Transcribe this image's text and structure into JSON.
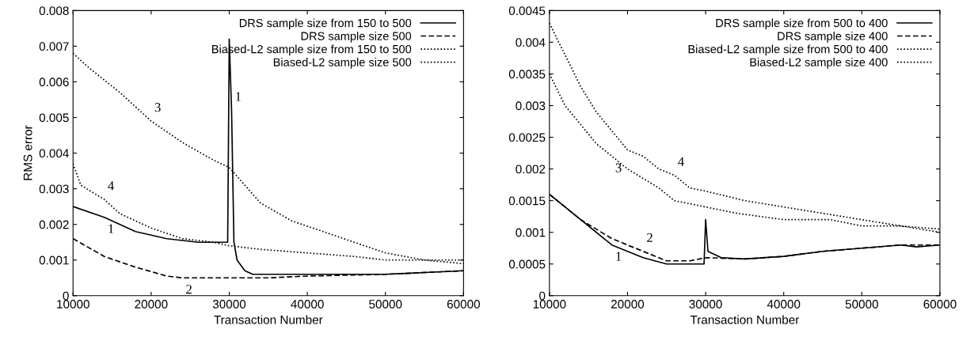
{
  "chart_data": [
    {
      "type": "line",
      "xlabel": "Transaction Number",
      "ylabel": "RMS error",
      "xlim": [
        10000,
        60000
      ],
      "xticks": [
        10000,
        20000,
        30000,
        40000,
        50000,
        60000
      ],
      "ylim": [
        0,
        0.008
      ],
      "yticks": [
        0,
        0.001,
        0.002,
        0.003,
        0.004,
        0.005,
        0.006,
        0.007,
        0.008
      ],
      "legend": "top right",
      "grid": false,
      "series": [
        {
          "name": "DRS sample size from 150 to 500",
          "color": "#000000",
          "line_style": "solid",
          "x": [
            10000,
            14000,
            18000,
            22000,
            26000,
            29800,
            30000,
            30300,
            30600,
            31000,
            32000,
            33000,
            40000,
            50000,
            55000,
            60000
          ],
          "values": [
            0.0025,
            0.0022,
            0.0018,
            0.0016,
            0.0015,
            0.0015,
            0.0072,
            0.0052,
            0.0015,
            0.001,
            0.0007,
            0.0006,
            0.0006,
            0.0006,
            0.00065,
            0.0007
          ]
        },
        {
          "name": "DRS sample size 500",
          "color": "#000000",
          "line_style": "dashed",
          "x": [
            10000,
            14000,
            18000,
            22000,
            24000,
            30000,
            35000,
            40000,
            50000,
            60000
          ],
          "values": [
            0.0016,
            0.0011,
            0.0008,
            0.00055,
            0.0005,
            0.0005,
            0.0005,
            0.00055,
            0.0006,
            0.0007
          ]
        },
        {
          "name": "Biased-L2 sample size from 150 to 500",
          "color": "#000000",
          "line_style": "dotted",
          "x": [
            10000,
            12000,
            16000,
            20000,
            24000,
            28000,
            30000,
            32000,
            34000,
            38000,
            42000,
            46000,
            50000,
            55000,
            60000
          ],
          "values": [
            0.0068,
            0.0064,
            0.0057,
            0.0049,
            0.0043,
            0.0038,
            0.0036,
            0.0031,
            0.0026,
            0.0021,
            0.0018,
            0.0015,
            0.0012,
            0.001,
            0.0009
          ]
        },
        {
          "name": "Biased-L2 sample size 500",
          "color": "#000000",
          "line_style": "dotted",
          "x": [
            10000,
            11000,
            14000,
            16000,
            20000,
            24000,
            28000,
            30000,
            34000,
            40000,
            46000,
            50000,
            55000,
            60000
          ],
          "values": [
            0.0037,
            0.0031,
            0.0027,
            0.0023,
            0.0019,
            0.0016,
            0.0015,
            0.0014,
            0.0013,
            0.0012,
            0.0011,
            0.001,
            0.001,
            0.001
          ]
        }
      ],
      "annotations": [
        {
          "text": "3",
          "x": 20000,
          "y": 0.0049
        },
        {
          "text": "1",
          "x": 30300,
          "y": 0.0052
        },
        {
          "text": "4",
          "x": 14000,
          "y": 0.0027
        },
        {
          "text": "1",
          "x": 14000,
          "y": 0.0022
        },
        {
          "text": "2",
          "x": 24000,
          "y": 0.0005
        }
      ]
    },
    {
      "type": "line",
      "xlabel": "Transaction Number",
      "xlim": [
        10000,
        60000
      ],
      "xticks": [
        10000,
        20000,
        30000,
        40000,
        50000,
        60000
      ],
      "ylim": [
        0,
        0.0045
      ],
      "yticks": [
        0,
        0.0005,
        0.001,
        0.0015,
        0.002,
        0.0025,
        0.003,
        0.0035,
        0.004,
        0.0045
      ],
      "legend": "top right",
      "grid": false,
      "series": [
        {
          "name": "DRS sample size from 500 to 400",
          "color": "#000000",
          "line_style": "solid",
          "x": [
            10000,
            14000,
            18000,
            22000,
            25000,
            29800,
            30000,
            30300,
            32000,
            35000,
            40000,
            45000,
            50000,
            55000,
            57000,
            60000
          ],
          "values": [
            0.0016,
            0.0012,
            0.0008,
            0.0006,
            0.0005,
            0.0005,
            0.0012,
            0.0007,
            0.0006,
            0.00058,
            0.00062,
            0.0007,
            0.00075,
            0.0008,
            0.00077,
            0.0008
          ]
        },
        {
          "name": "DRS sample size 400",
          "color": "#000000",
          "line_style": "dashed",
          "x": [
            10000,
            14000,
            18000,
            22000,
            25000,
            28000,
            30000,
            35000,
            40000,
            45000,
            50000,
            55000,
            60000
          ],
          "values": [
            0.0016,
            0.0012,
            0.0009,
            0.0007,
            0.00055,
            0.00055,
            0.0006,
            0.00058,
            0.00062,
            0.0007,
            0.00075,
            0.0008,
            0.0008
          ]
        },
        {
          "name": "Biased-L2 sample size from 500 to 400",
          "color": "#000000",
          "line_style": "dotted",
          "x": [
            10000,
            12000,
            14000,
            16000,
            18000,
            20000,
            24000,
            26000,
            30000,
            34000,
            40000,
            46000,
            50000,
            55000,
            60000
          ],
          "values": [
            0.0035,
            0.003,
            0.0027,
            0.0024,
            0.0022,
            0.002,
            0.0017,
            0.0015,
            0.0014,
            0.0013,
            0.0012,
            0.0012,
            0.0011,
            0.0011,
            0.001
          ]
        },
        {
          "name": "Biased-L2 sample size 400",
          "color": "#000000",
          "line_style": "dotted",
          "x": [
            10000,
            12000,
            14000,
            16000,
            18000,
            20000,
            22000,
            24000,
            26000,
            28000,
            30000,
            35000,
            40000,
            45000,
            50000,
            55000,
            60000
          ],
          "values": [
            0.0043,
            0.0038,
            0.0033,
            0.0029,
            0.0026,
            0.0023,
            0.0022,
            0.002,
            0.0019,
            0.0017,
            0.00165,
            0.0015,
            0.0014,
            0.0013,
            0.0012,
            0.0011,
            0.00105
          ]
        }
      ],
      "annotations": [
        {
          "text": "4",
          "x": 26000,
          "y": 0.0019
        },
        {
          "text": "3",
          "x": 18000,
          "y": 0.0022
        },
        {
          "text": "1",
          "x": 18000,
          "y": 0.0008
        },
        {
          "text": "2",
          "x": 22000,
          "y": 0.0007
        }
      ]
    }
  ]
}
